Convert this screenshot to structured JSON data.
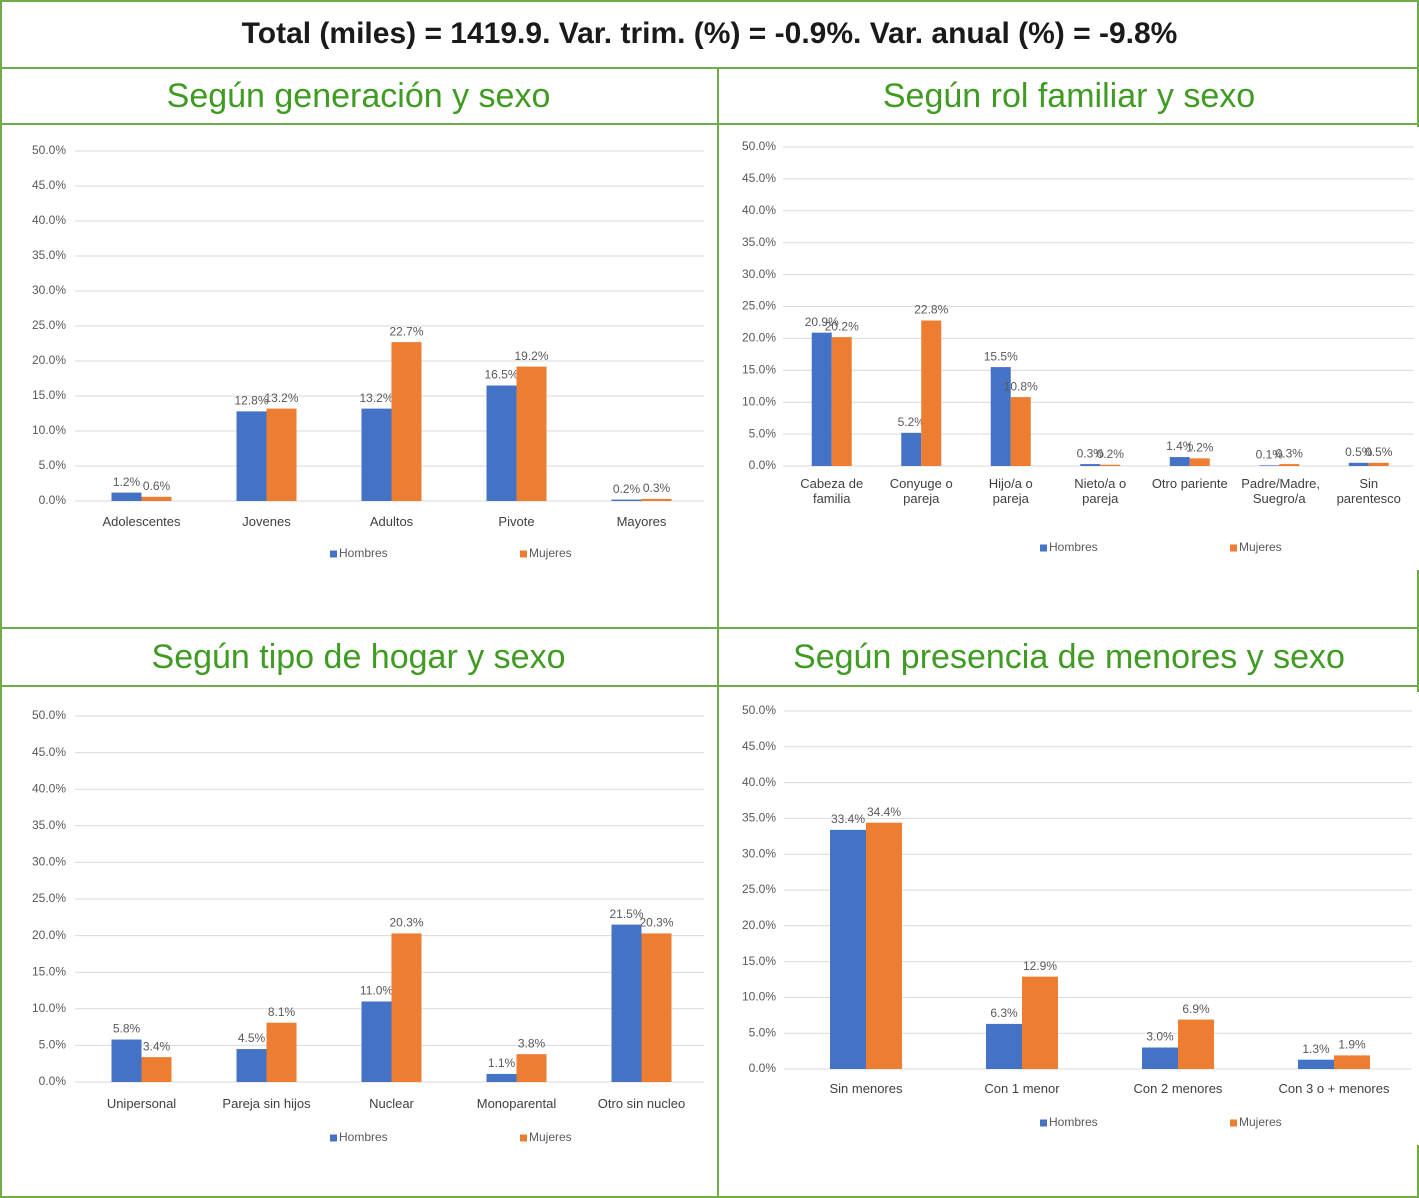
{
  "title": "Total (miles) = 1419.9. Var. trim. (%) = -0.9%. Var. anual (%) = -9.8%",
  "chart_data": [
    {
      "type": "bar",
      "title": "Según generación y sexo",
      "categories": [
        "Adolescentes",
        "Jovenes",
        "Adultos",
        "Pivote",
        "Mayores"
      ],
      "series": [
        {
          "name": "Hombres",
          "color": "#4472c4",
          "values": [
            1.2,
            12.8,
            13.2,
            16.5,
            0.2
          ],
          "value_labels": [
            "1.2%",
            "12.8%",
            "13.2%",
            "16.5%",
            "0.2%"
          ]
        },
        {
          "name": "Mujeres",
          "color": "#ed7d31",
          "values": [
            0.6,
            13.2,
            22.7,
            19.2,
            0.3
          ],
          "value_labels": [
            "0.6%",
            "13.2%",
            "22.7%",
            "19.2%",
            "0.3%"
          ]
        }
      ],
      "ylim": [
        0,
        50
      ],
      "yticks": [
        {
          "value": 0,
          "label": "0.0%"
        },
        {
          "value": 5,
          "label": "5.0%"
        },
        {
          "value": 10,
          "label": "10.0%"
        },
        {
          "value": 15,
          "label": "15.0%"
        },
        {
          "value": 20,
          "label": "20.0%"
        },
        {
          "value": 25,
          "label": "25.0%"
        },
        {
          "value": 30,
          "label": "30.0%"
        },
        {
          "value": 35,
          "label": "35.0%"
        },
        {
          "value": 40,
          "label": "40.0%"
        },
        {
          "value": 45,
          "label": "45.0%"
        },
        {
          "value": 50,
          "label": "50.0%"
        }
      ],
      "grid": true,
      "legend": "bottom"
    },
    {
      "type": "bar",
      "title": "Según rol familiar y sexo",
      "categories": [
        "Cabeza de familia",
        "Conyuge o pareja",
        "Hijo/a o pareja",
        "Nieto/a o pareja",
        "Otro pariente",
        "Padre/Madre, Suegro/a",
        "Sin parentesco"
      ],
      "series": [
        {
          "name": "Hombres",
          "color": "#4472c4",
          "values": [
            20.9,
            5.2,
            15.5,
            0.3,
            1.4,
            0.1,
            0.5
          ],
          "value_labels": [
            "20.9%",
            "5.2%",
            "15.5%",
            "0.3%",
            "1.4%",
            "0.1%",
            "0.5%"
          ]
        },
        {
          "name": "Mujeres",
          "color": "#ed7d31",
          "values": [
            20.2,
            22.8,
            10.8,
            0.2,
            1.2,
            0.3,
            0.5
          ],
          "value_labels": [
            "20.2%",
            "22.8%",
            "10.8%",
            "0.2%",
            "1.2%",
            "0.3%",
            "0.5%"
          ]
        }
      ],
      "ylim": [
        0,
        50
      ],
      "yticks": [
        {
          "value": 0,
          "label": "0.0%"
        },
        {
          "value": 5,
          "label": "5.0%"
        },
        {
          "value": 10,
          "label": "10.0%"
        },
        {
          "value": 15,
          "label": "15.0%"
        },
        {
          "value": 20,
          "label": "20.0%"
        },
        {
          "value": 25,
          "label": "25.0%"
        },
        {
          "value": 30,
          "label": "30.0%"
        },
        {
          "value": 35,
          "label": "35.0%"
        },
        {
          "value": 40,
          "label": "40.0%"
        },
        {
          "value": 45,
          "label": "45.0%"
        },
        {
          "value": 50,
          "label": "50.0%"
        }
      ],
      "grid": true,
      "legend": "bottom"
    },
    {
      "type": "bar",
      "title": "Según tipo de hogar y sexo",
      "categories": [
        "Unipersonal",
        "Pareja sin hijos",
        "Nuclear",
        "Monoparental",
        "Otro sin nucleo"
      ],
      "series": [
        {
          "name": "Hombres",
          "color": "#4472c4",
          "values": [
            5.8,
            4.5,
            11.0,
            1.1,
            21.5
          ],
          "value_labels": [
            "5.8%",
            "4.5%",
            "11.0%",
            "1.1%",
            "21.5%"
          ]
        },
        {
          "name": "Mujeres",
          "color": "#ed7d31",
          "values": [
            3.4,
            8.1,
            20.3,
            3.8,
            20.3
          ],
          "value_labels": [
            "3.4%",
            "8.1%",
            "20.3%",
            "3.8%",
            "20.3%"
          ]
        }
      ],
      "ylim": [
        0,
        50
      ],
      "yticks": [
        {
          "value": 0,
          "label": "0.0%"
        },
        {
          "value": 5,
          "label": "5.0%"
        },
        {
          "value": 10,
          "label": "10.0%"
        },
        {
          "value": 15,
          "label": "15.0%"
        },
        {
          "value": 20,
          "label": "20.0%"
        },
        {
          "value": 25,
          "label": "25.0%"
        },
        {
          "value": 30,
          "label": "30.0%"
        },
        {
          "value": 35,
          "label": "35.0%"
        },
        {
          "value": 40,
          "label": "40.0%"
        },
        {
          "value": 45,
          "label": "45.0%"
        },
        {
          "value": 50,
          "label": "50.0%"
        }
      ],
      "grid": true,
      "legend": "bottom"
    },
    {
      "type": "bar",
      "title": "Según presencia de menores y sexo",
      "categories": [
        "Sin menores",
        "Con 1 menor",
        "Con 2 menores",
        "Con 3 o + menores"
      ],
      "series": [
        {
          "name": "Hombres",
          "color": "#4472c4",
          "values": [
            33.4,
            6.3,
            3.0,
            1.3
          ],
          "value_labels": [
            "33.4%",
            "6.3%",
            "3.0%",
            "1.3%"
          ]
        },
        {
          "name": "Mujeres",
          "color": "#ed7d31",
          "values": [
            34.4,
            12.9,
            6.9,
            1.9
          ],
          "value_labels": [
            "34.4%",
            "12.9%",
            "6.9%",
            "1.9%"
          ]
        }
      ],
      "ylim": [
        0,
        50
      ],
      "yticks": [
        {
          "value": 0,
          "label": "0.0%"
        },
        {
          "value": 5,
          "label": "5.0%"
        },
        {
          "value": 10,
          "label": "10.0%"
        },
        {
          "value": 15,
          "label": "15.0%"
        },
        {
          "value": 20,
          "label": "20.0%"
        },
        {
          "value": 25,
          "label": "25.0%"
        },
        {
          "value": 30,
          "label": "30.0%"
        },
        {
          "value": 35,
          "label": "35.0%"
        },
        {
          "value": 40,
          "label": "40.0%"
        },
        {
          "value": 45,
          "label": "45.0%"
        },
        {
          "value": 50,
          "label": "50.0%"
        }
      ],
      "grid": true,
      "legend": "bottom"
    }
  ]
}
